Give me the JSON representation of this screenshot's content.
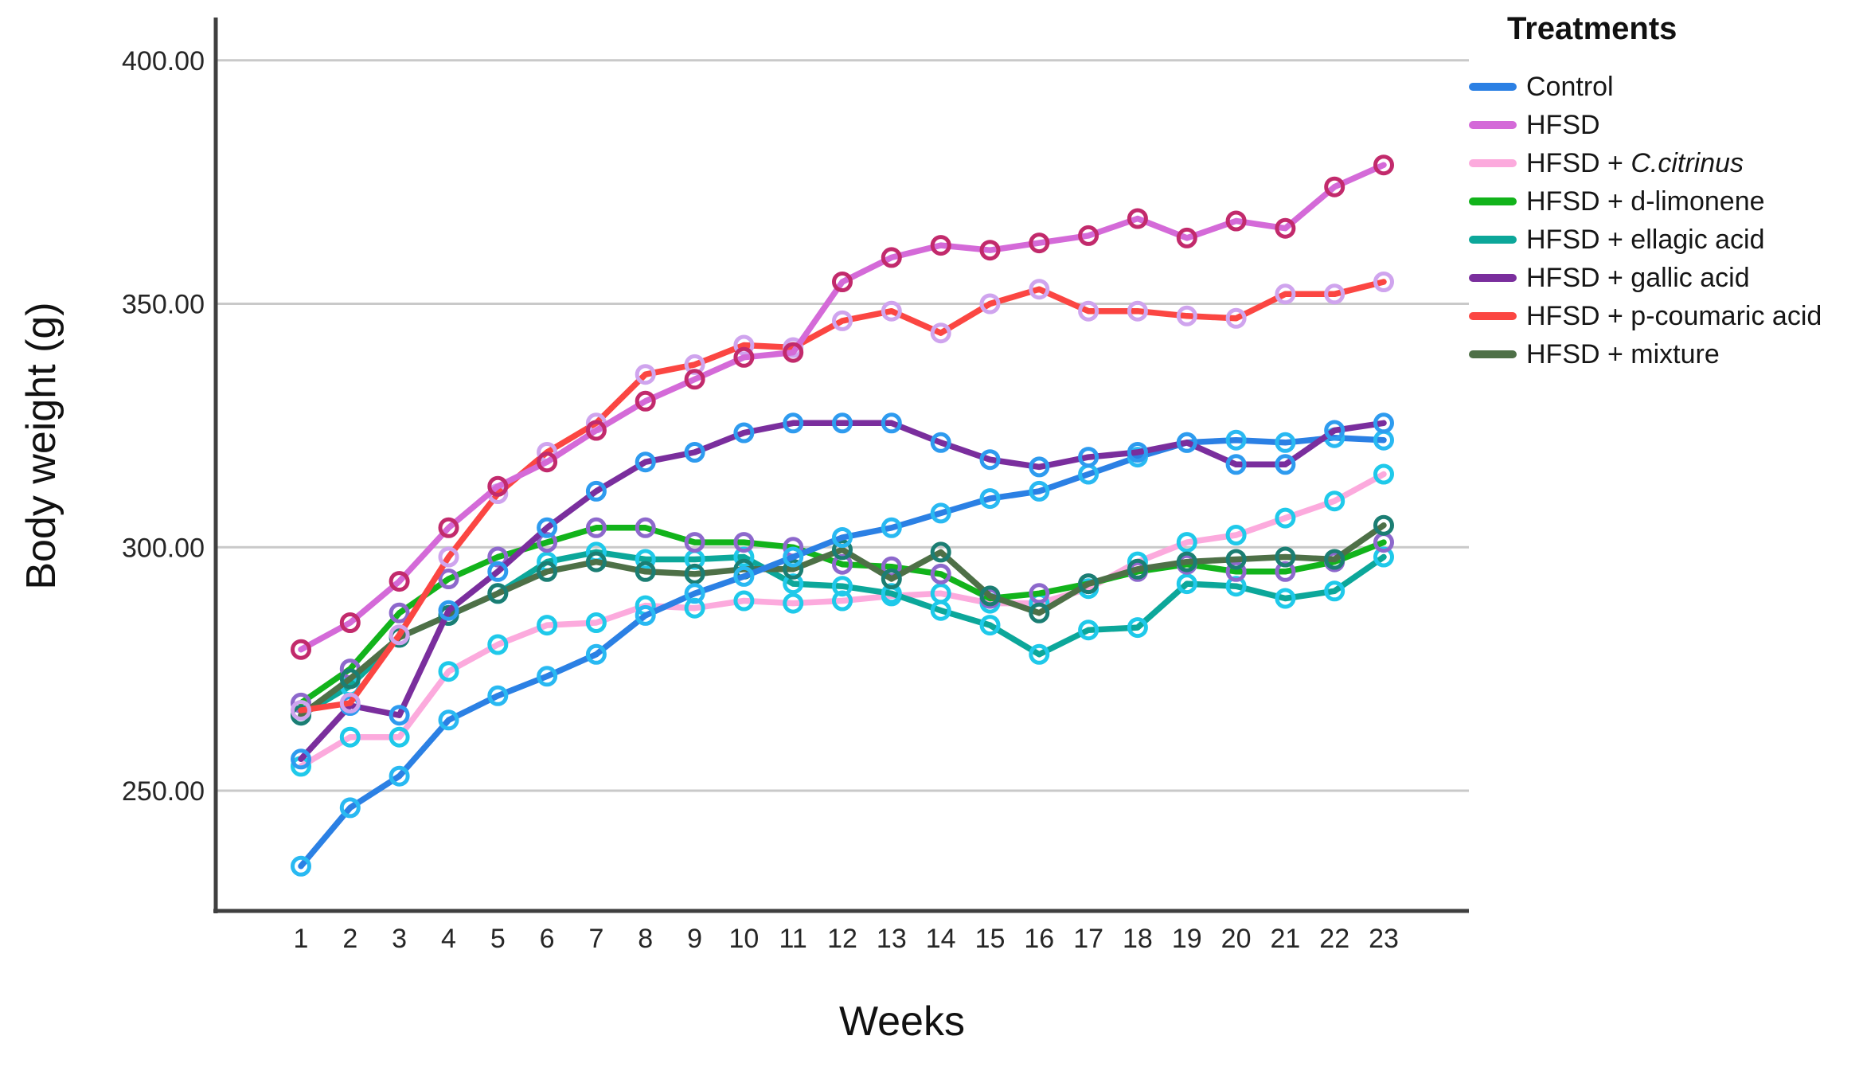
{
  "chart_data": {
    "type": "line",
    "title": "",
    "xlabel": "Weeks",
    "ylabel": "Body weight (g)",
    "legend_title": "Treatments",
    "legend_position": "right",
    "grid": "horizontal",
    "x": [
      1,
      2,
      3,
      4,
      5,
      6,
      7,
      8,
      9,
      10,
      11,
      12,
      13,
      14,
      15,
      16,
      17,
      18,
      19,
      20,
      21,
      22,
      23
    ],
    "y_ticks": [
      {
        "value": 250,
        "label": "250.00"
      },
      {
        "value": 300,
        "label": "300.00"
      },
      {
        "value": 350,
        "label": "350.00"
      },
      {
        "value": 400,
        "label": "400.00"
      }
    ],
    "ylim": [
      225,
      408
    ],
    "xlim": [
      0,
      24.7
    ],
    "series": [
      {
        "name": "Control",
        "line_color": "#2b80e4",
        "marker_color": "#29b9f2",
        "values": [
          234.5,
          246.5,
          253,
          264.5,
          269.5,
          273.5,
          278,
          286,
          290.5,
          294,
          298,
          302,
          304,
          307,
          310,
          311.5,
          315,
          318.5,
          321.5,
          322,
          321.5,
          322.5,
          322
        ]
      },
      {
        "name": "HFSD",
        "line_color": "#d46ad8",
        "marker_color": "#c22a6c",
        "values": [
          279,
          284.5,
          293,
          304,
          312.5,
          317.5,
          324,
          330,
          334.5,
          339,
          340,
          354.5,
          359.5,
          362,
          361,
          362.5,
          364,
          367.5,
          363.5,
          367,
          365.5,
          374,
          378.5
        ]
      },
      {
        "name": "HFSD + C.citrinus",
        "italic_suffix": "C.citrinus",
        "line_color": "#fcaadd",
        "marker_color": "#1fc9ea",
        "values": [
          255,
          261,
          261,
          274.5,
          280,
          284,
          284.5,
          288,
          287.5,
          289,
          288.5,
          289,
          290,
          290.5,
          288.5,
          288.5,
          291.5,
          297,
          301,
          302.5,
          306,
          309.5,
          315
        ]
      },
      {
        "name": "HFSD + d-limonene",
        "line_color": "#12b31b",
        "marker_color": "#8d68cc",
        "values": [
          268,
          275,
          286.5,
          293.5,
          298,
          301,
          304,
          304,
          301,
          301,
          300,
          296.5,
          296,
          294.5,
          289.5,
          290.5,
          292.5,
          295,
          296.5,
          295,
          295,
          297,
          301
        ]
      },
      {
        "name": "HFSD + ellagic acid",
        "line_color": "#0ca79a",
        "marker_color": "#1fc9ea",
        "values": [
          265.5,
          271.5,
          281.5,
          286,
          290.5,
          297,
          299,
          297.5,
          297.5,
          298,
          292.5,
          292,
          290.5,
          287,
          284,
          278,
          283,
          283.5,
          292.5,
          292,
          289.5,
          291,
          298
        ]
      },
      {
        "name": "HFSD + gallic acid",
        "line_color": "#7a2e9d",
        "marker_color": "#2e9bef",
        "values": [
          256.5,
          267.5,
          265.5,
          287,
          295,
          304,
          311.5,
          317.5,
          319.5,
          323.5,
          325.5,
          325.5,
          325.5,
          321.5,
          318,
          316.5,
          318.5,
          319.5,
          321.5,
          317,
          317,
          324,
          325.5
        ]
      },
      {
        "name": "HFSD + p-coumaric acid",
        "line_color": "#fb4642",
        "marker_color": "#cfa4ee",
        "values": [
          266.5,
          268,
          282,
          298,
          311,
          319.5,
          325.5,
          335.5,
          337.5,
          341.5,
          341,
          346.5,
          348.5,
          344,
          350,
          353,
          348.5,
          348.5,
          347.5,
          347,
          352,
          352,
          354.5
        ]
      },
      {
        "name": "HFSD + mixture",
        "line_color": "#4e7047",
        "marker_color": "#1b7e73",
        "values": [
          265.5,
          273,
          281.5,
          286,
          290.5,
          295,
          297,
          295,
          294.5,
          295.5,
          295.5,
          299.5,
          293.5,
          299,
          290,
          286.5,
          292.5,
          295.5,
          297,
          297.5,
          298,
          297.5,
          304.5
        ]
      }
    ],
    "colors": {
      "gridline": "#c9c9c9",
      "axis_line": "#3f3f3f",
      "background": "#ffffff",
      "text": "#161616"
    }
  }
}
